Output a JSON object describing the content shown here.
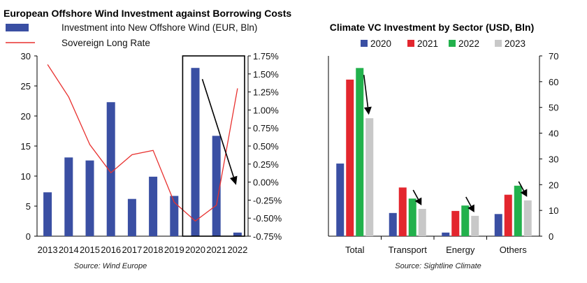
{
  "chart_data": [
    {
      "type": "bar+line",
      "title": "European Offshore Wind Investment against Borrowing Costs",
      "categories": [
        "2013",
        "2014",
        "2015",
        "2016",
        "2017",
        "2018",
        "2019",
        "2020",
        "2021",
        "2022"
      ],
      "series": [
        {
          "name": "Investment into New Offshore Wind (EUR, Bln)",
          "type": "bar",
          "axis": "left",
          "color": "#3a4fa3",
          "values": [
            7.3,
            13.1,
            12.6,
            22.3,
            6.2,
            9.9,
            6.7,
            28.0,
            16.7,
            0.6
          ]
        },
        {
          "name": "Sovereign Long Rate",
          "type": "line",
          "axis": "right",
          "color": "#e8312f",
          "values": [
            1.63,
            1.18,
            0.52,
            0.13,
            0.38,
            0.44,
            -0.28,
            -0.54,
            -0.32,
            1.3
          ]
        }
      ],
      "left_axis": {
        "ylim": [
          0,
          30
        ],
        "ticks": [
          "0",
          "5",
          "10",
          "15",
          "20",
          "25",
          "30"
        ]
      },
      "right_axis": {
        "ylim": [
          -0.75,
          1.75
        ],
        "ticks": [
          "-0.75%",
          "-0.50%",
          "-0.25%",
          "0.00%",
          "0.25%",
          "0.50%",
          "0.75%",
          "1.00%",
          "1.25%",
          "1.50%",
          "1.75%"
        ]
      },
      "highlight_box": {
        "from_category": "2020",
        "to_category": "2022"
      },
      "source": "Source: Wind Europe"
    },
    {
      "type": "bar",
      "title": "Climate VC Investment by Sector (USD, Bln)",
      "categories": [
        "Total",
        "Transport",
        "Energy",
        "Others"
      ],
      "series": [
        {
          "name": "2020",
          "color": "#3a4fa3",
          "values": [
            28.2,
            9.0,
            1.4,
            8.6
          ]
        },
        {
          "name": "2021",
          "color": "#e3262e",
          "values": [
            60.8,
            18.9,
            9.8,
            16.1
          ]
        },
        {
          "name": "2022",
          "color": "#22b14c",
          "values": [
            65.3,
            14.6,
            11.9,
            19.6
          ]
        },
        {
          "name": "2023",
          "color": "#c8c8c8",
          "values": [
            45.8,
            10.6,
            7.9,
            13.9
          ]
        }
      ],
      "ylim": [
        0,
        70
      ],
      "right_axis_ticks": [
        "0",
        "10",
        "20",
        "30",
        "40",
        "50",
        "60",
        "70"
      ],
      "source": "Source: Sightline Climate"
    }
  ]
}
